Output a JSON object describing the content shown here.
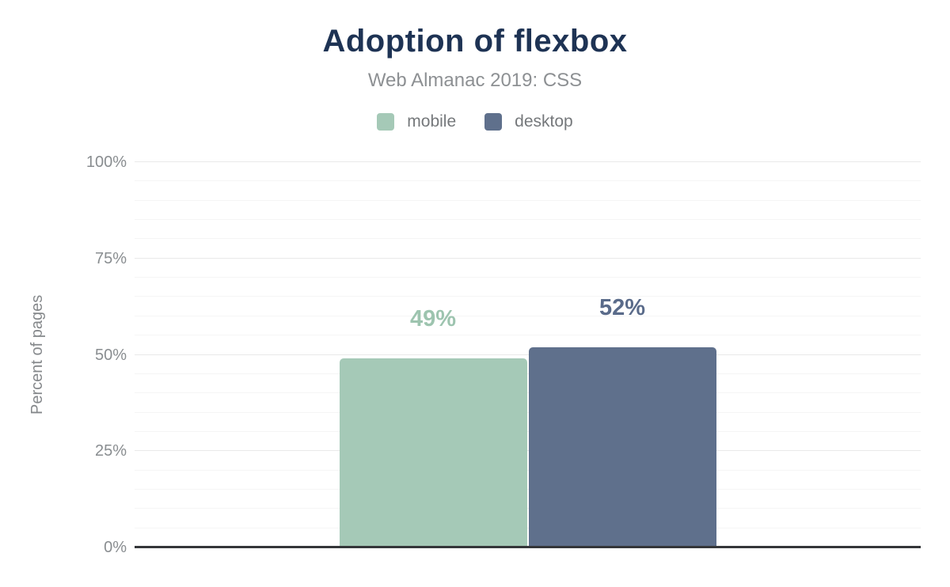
{
  "header": {
    "title": "Adoption of flexbox",
    "subtitle": "Web Almanac 2019: CSS"
  },
  "legend": {
    "items": [
      {
        "label": "mobile",
        "color": "#a5c9b7"
      },
      {
        "label": "desktop",
        "color": "#5f708c"
      }
    ]
  },
  "axes": {
    "ylabel": "Percent of pages",
    "yticks": [
      {
        "value": 100,
        "label": "100%"
      },
      {
        "value": 75,
        "label": "75%"
      },
      {
        "value": 50,
        "label": "50%"
      },
      {
        "value": 25,
        "label": "25%"
      },
      {
        "value": 0,
        "label": "0%"
      }
    ]
  },
  "chart_data": {
    "type": "bar",
    "title": "Adoption of flexbox",
    "subtitle": "Web Almanac 2019: CSS",
    "categories": [
      "flexbox"
    ],
    "series": [
      {
        "name": "mobile",
        "values": [
          49
        ],
        "data_labels": [
          "49%"
        ],
        "color": "#a5c9b7",
        "label_color": "#9dc4af"
      },
      {
        "name": "desktop",
        "values": [
          52
        ],
        "data_labels": [
          "52%"
        ],
        "color": "#5f708c",
        "label_color": "#5a6b8a"
      }
    ],
    "xlabel": "",
    "ylabel": "Percent of pages",
    "ylim": [
      0,
      100
    ],
    "ytick_interval": 25,
    "minor_grid_interval": 5,
    "grid": true,
    "legend_position": "top"
  },
  "style": {
    "title_color": "#1e3354",
    "subtitle_color": "#8d9093",
    "legend_text_color": "#75787b",
    "tick_color": "#898d90",
    "ylabel_color": "#85888b",
    "grid_major_color": "#e9e9e9",
    "grid_minor_color": "#f5f5f5",
    "axis_line_color": "#343639",
    "background": "#ffffff"
  }
}
